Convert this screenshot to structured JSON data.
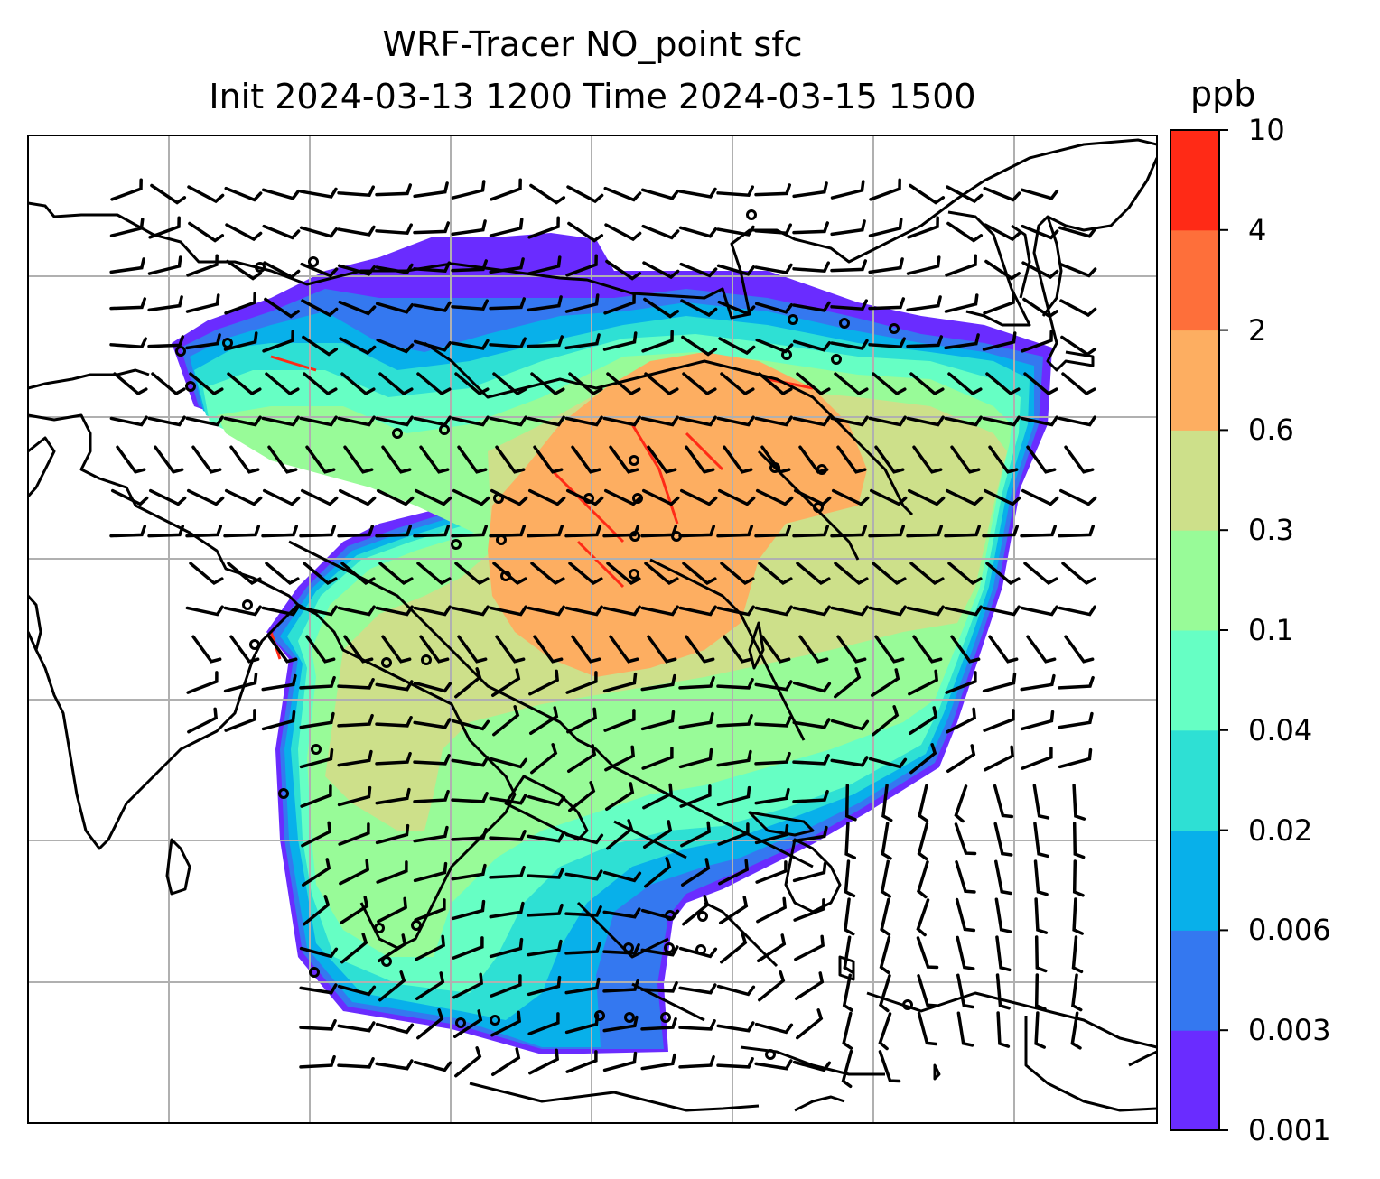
{
  "title": {
    "line1": "WRF-Tracer NO_point sfc",
    "line2": "Init 2024-03-13 1200 Time 2024-03-15 1500"
  },
  "colorbar": {
    "unit": "ppb",
    "ticks": [
      "0.001",
      "0.003",
      "0.006",
      "0.02",
      "0.04",
      "0.1",
      "0.3",
      "0.6",
      "2",
      "4",
      "10"
    ],
    "colors": [
      "#6a2cff",
      "#3478f0",
      "#08b0ea",
      "#2ee0d4",
      "#66ffc4",
      "#98fb98",
      "#cde08a",
      "#fdae61",
      "#fe6f3a",
      "#ff2a16"
    ]
  },
  "map": {
    "background": "#ffffff",
    "gridline_color": "#b0b0b0",
    "coastline_color": "#000000",
    "field": "surface NO tracer concentration with wind barbs and point-source markers"
  }
}
